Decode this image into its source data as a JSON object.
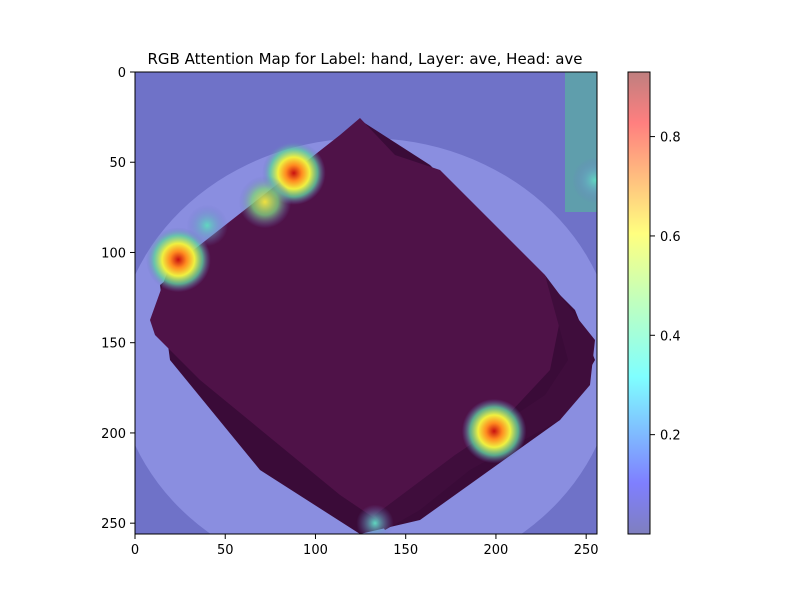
{
  "chart_data": {
    "type": "heatmap",
    "title": "RGB Attention Map for Label: hand, Layer: ave, Head: ave",
    "xlabel": "",
    "ylabel": "",
    "image_size": [
      256,
      256
    ],
    "xlim": [
      0,
      256
    ],
    "ylim": [
      256,
      0
    ],
    "x_ticks": [
      0,
      50,
      100,
      150,
      200,
      250
    ],
    "y_ticks": [
      0,
      50,
      100,
      150,
      200,
      250
    ],
    "colorbar": {
      "cmap": "jet",
      "alpha": 0.5,
      "min": 0.0,
      "max": 0.93,
      "ticks": [
        0.2,
        0.4,
        0.6,
        0.8
      ]
    },
    "attention_peaks": [
      {
        "x": 24,
        "y": 104,
        "value": 0.93
      },
      {
        "x": 88,
        "y": 56,
        "value": 0.9
      },
      {
        "x": 72,
        "y": 72,
        "value": 0.65
      },
      {
        "x": 40,
        "y": 85,
        "value": 0.4
      },
      {
        "x": 199,
        "y": 199,
        "value": 0.92
      },
      {
        "x": 255,
        "y": 60,
        "value": 0.5
      },
      {
        "x": 133,
        "y": 250,
        "value": 0.3
      }
    ],
    "background_value": 0.02,
    "colors": {
      "background_overlay": "#6f72c8",
      "plate": "#8a8ee0",
      "object": "#4f1248",
      "object_shadow": "#3a0b38"
    }
  }
}
